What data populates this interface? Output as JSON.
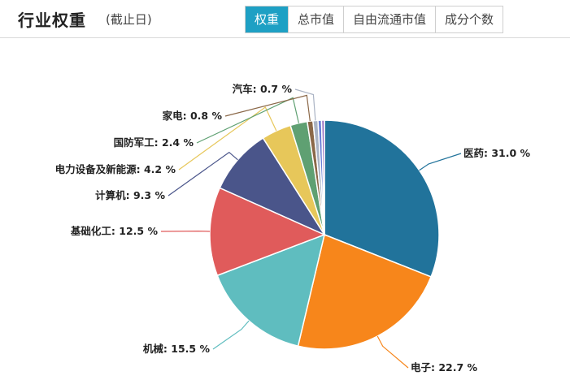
{
  "header": {
    "title": "行业权重",
    "subtitle": "(截止日)",
    "tabs": [
      {
        "label": "权重",
        "active": true
      },
      {
        "label": "总市值",
        "active": false
      },
      {
        "label": "自由流通市值",
        "active": false
      },
      {
        "label": "成分个数",
        "active": false
      }
    ]
  },
  "colors": {
    "accent": "#1ea0c4"
  },
  "chart_data": {
    "type": "pie",
    "unit": "%",
    "slices": [
      {
        "name": "医药",
        "value": 31.0,
        "label": "医药: 31.0 %",
        "color": "#21739b"
      },
      {
        "name": "电子",
        "value": 22.7,
        "label": "电子: 22.7 %",
        "color": "#f7861b"
      },
      {
        "name": "机械",
        "value": 15.5,
        "label": "机械: 15.5 %",
        "color": "#5fbdbf"
      },
      {
        "name": "基础化工",
        "value": 12.5,
        "label": "基础化工: 12.5 %",
        "color": "#e05b5b"
      },
      {
        "name": "计算机",
        "value": 9.3,
        "label": "计算机: 9.3 %",
        "color": "#4a558a"
      },
      {
        "name": "电力设备及新能源",
        "value": 4.2,
        "label": "电力设备及新能源: 4.2 %",
        "color": "#e7c75a"
      },
      {
        "name": "国防军工",
        "value": 2.4,
        "label": "国防军工: 2.4 %",
        "color": "#5fa072"
      },
      {
        "name": "家电",
        "value": 0.8,
        "label": "家电: 0.8 %",
        "color": "#8b6848"
      },
      {
        "name": "汽车",
        "value": 0.7,
        "label": "汽车: 0.7 %",
        "color": "#aab3c4"
      }
    ],
    "unlabeled_slices": [
      {
        "value": 0.5,
        "color": "#6a7fd6"
      },
      {
        "value": 0.4,
        "color": "#9a72c2"
      }
    ]
  }
}
